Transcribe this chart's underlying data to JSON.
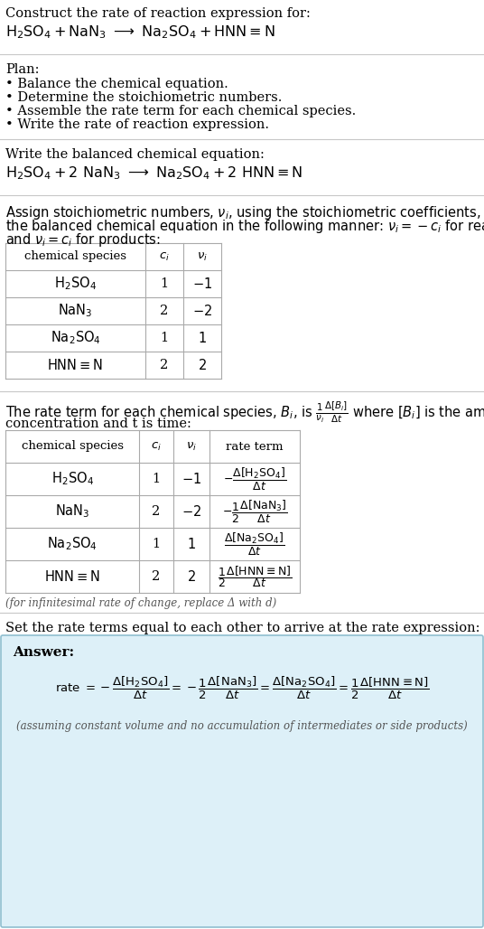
{
  "bg_color": "#ffffff",
  "answer_bg_color": "#ddf0f8",
  "answer_border_color": "#90bfd0",
  "text_color": "#000000",
  "gray_text": "#555555",
  "title_line1": "Construct the rate of reaction expression for:",
  "plan_header": "Plan:",
  "plan_items": [
    "• Balance the chemical equation.",
    "• Determine the stoichiometric numbers.",
    "• Assemble the rate term for each chemical species.",
    "• Write the rate of reaction expression."
  ],
  "balanced_header": "Write the balanced chemical equation:",
  "infinitesimal_note": "(for infinitesimal rate of change, replace Δ with d)",
  "set_rate_header": "Set the rate terms equal to each other to arrive at the rate expression:",
  "answer_label": "Answer:",
  "answer_note": "(assuming constant volume and no accumulation of intermediates or side products)",
  "species": [
    "$\\mathrm{H_2SO_4}$",
    "$\\mathrm{NaN_3}$",
    "$\\mathrm{Na_2SO_4}$",
    "$\\mathrm{HNN{\\equiv}N}$"
  ],
  "ci_vals": [
    "1",
    "2",
    "1",
    "2"
  ],
  "nu_vals": [
    "$-1$",
    "$-2$",
    "$1$",
    "$2$"
  ],
  "rate_terms": [
    "$-\\dfrac{\\Delta[\\mathrm{H_2SO_4}]}{\\Delta t}$",
    "$-\\dfrac{1}{2}\\dfrac{\\Delta[\\mathrm{NaN_3}]}{\\Delta t}$",
    "$\\dfrac{\\Delta[\\mathrm{Na_2SO_4}]}{\\Delta t}$",
    "$\\dfrac{1}{2}\\dfrac{\\Delta[\\mathrm{HNN{\\equiv}N}]}{\\Delta t}$"
  ]
}
